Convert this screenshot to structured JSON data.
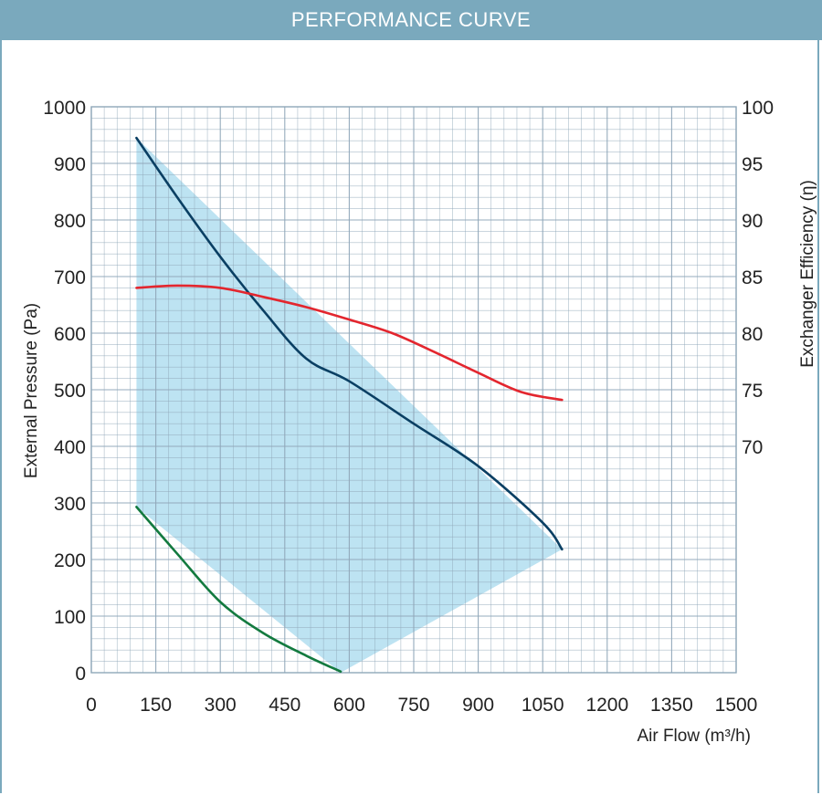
{
  "header": {
    "title": "PERFORMANCE CURVE"
  },
  "colors": {
    "header_bg": "#7aa9bd",
    "grid_line": "#8fa7b8",
    "fill_area": "#bde3f2",
    "pressure_curve": "#0a3f63",
    "efficiency_curve": "#e3262e",
    "min_curve": "#137a3f"
  },
  "chart_data": {
    "type": "line",
    "xlabel": "Air Flow (m³/h)",
    "ylabel": "External Pressure (Pa)",
    "y2label": "Exchanger Efficiency (η)",
    "xlim": [
      0,
      1500
    ],
    "ylim": [
      0,
      1000
    ],
    "y2lim": [
      50,
      100
    ],
    "x_ticks": [
      "0",
      "150",
      "300",
      "450",
      "600",
      "750",
      "900",
      "1050",
      "1200",
      "1350",
      "1500"
    ],
    "y_ticks": [
      "0",
      "100",
      "200",
      "300",
      "400",
      "500",
      "600",
      "700",
      "800",
      "900",
      "1000"
    ],
    "y2_ticks": [
      "70",
      "75",
      "80",
      "85",
      "90",
      "95",
      "100"
    ],
    "grid": true,
    "series": [
      {
        "axis": "left",
        "points": [
          [
            105,
            945
          ],
          [
            200,
            840
          ],
          [
            300,
            735
          ],
          [
            400,
            640
          ],
          [
            500,
            555
          ],
          [
            600,
            515
          ],
          [
            750,
            440
          ],
          [
            900,
            365
          ],
          [
            1050,
            265
          ],
          [
            1095,
            218
          ]
        ]
      },
      {
        "axis": "left",
        "points": [
          [
            105,
            293
          ],
          [
            200,
            210
          ],
          [
            300,
            125
          ],
          [
            400,
            70
          ],
          [
            500,
            30
          ],
          [
            580,
            2
          ]
        ]
      },
      {
        "axis": "right",
        "points": [
          [
            105,
            84.0
          ],
          [
            200,
            84.2
          ],
          [
            300,
            84.0
          ],
          [
            400,
            83.2
          ],
          [
            500,
            82.3
          ],
          [
            600,
            81.2
          ],
          [
            700,
            80.0
          ],
          [
            800,
            78.3
          ],
          [
            900,
            76.5
          ],
          [
            1000,
            74.8
          ],
          [
            1095,
            74.1
          ]
        ]
      }
    ],
    "operating_area": [
      [
        105,
        945
      ],
      [
        105,
        293
      ],
      [
        580,
        0
      ],
      [
        1095,
        218
      ]
    ]
  }
}
